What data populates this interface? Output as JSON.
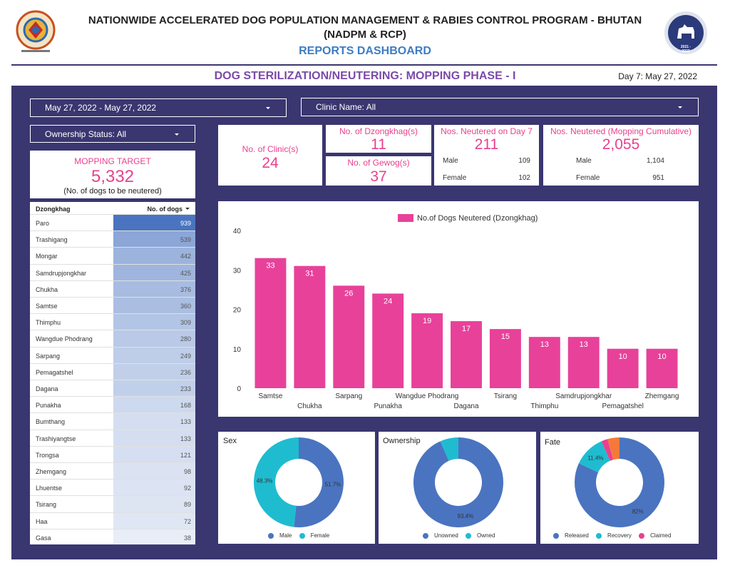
{
  "header": {
    "title_line1": "NATIONWIDE ACCELERATED DOG POPULATION MANAGEMENT & RABIES CONTROL PROGRAM - BHUTAN",
    "title_line2": "(NADPM & RCP)",
    "subtitle": "REPORTS DASHBOARD",
    "section_title": "DOG STERILIZATION/NEUTERING: MOPPING PHASE - I",
    "day_label": "Day 7: May 27, 2022",
    "left_logo_icon": "bhutan-emblem-icon",
    "right_logo_icon": "nadpm-dog-logo-icon",
    "right_logo_text": "2021 - 2022"
  },
  "filters": {
    "date_range": "May 27, 2022 - May 27, 2022",
    "clinic": "Clinic Name: All",
    "ownership": "Ownership Status: All"
  },
  "target": {
    "label": "MOPPING TARGET",
    "value": "5,332",
    "note": "(No. of dogs to be neutered)"
  },
  "kpis": {
    "clinics": {
      "label": "No. of Clinic(s)",
      "value": "24"
    },
    "dzongkhags": {
      "label": "No. of Dzongkhag(s)",
      "value": "11"
    },
    "gewogs": {
      "label": "No. of Gewog(s)",
      "value": "37"
    },
    "day7": {
      "label": "Nos. Neutered on Day 7",
      "value": "211",
      "male_label": "Male",
      "male": "109",
      "female_label": "Female",
      "female": "102"
    },
    "cumulative": {
      "label": "Nos. Neutered (Mopping Cumulative)",
      "value": "2,055",
      "male_label": "Male",
      "male": "1,104",
      "female_label": "Female",
      "female": "951"
    }
  },
  "table": {
    "col1": "Dzongkhag",
    "col2": "No. of dogs",
    "sort_icon": "sort-desc-icon",
    "rows": [
      {
        "name": "Paro",
        "value": "939"
      },
      {
        "name": "Trashigang",
        "value": "539"
      },
      {
        "name": "Mongar",
        "value": "442"
      },
      {
        "name": "Samdrupjongkhar",
        "value": "425"
      },
      {
        "name": "Chukha",
        "value": "376"
      },
      {
        "name": "Samtse",
        "value": "360"
      },
      {
        "name": "Thimphu",
        "value": "309"
      },
      {
        "name": "Wangdue Phodrang",
        "value": "280"
      },
      {
        "name": "Sarpang",
        "value": "249"
      },
      {
        "name": "Pemagatshel",
        "value": "236"
      },
      {
        "name": "Dagana",
        "value": "233"
      },
      {
        "name": "Punakha",
        "value": "168"
      },
      {
        "name": "Bumthang",
        "value": "133"
      },
      {
        "name": "Trashiyangtse",
        "value": "133"
      },
      {
        "name": "Trongsa",
        "value": "121"
      },
      {
        "name": "Zhemgang",
        "value": "98"
      },
      {
        "name": "Lhuentse",
        "value": "92"
      },
      {
        "name": "Tsirang",
        "value": "89"
      },
      {
        "name": "Haa",
        "value": "72"
      },
      {
        "name": "Gasa",
        "value": "38"
      }
    ]
  },
  "chart_data": [
    {
      "type": "bar",
      "legend": "No.of Dogs Neutered (Dzongkhag)",
      "legend_position": "top",
      "categories": [
        "Samtse",
        "Chukha",
        "Sarpang",
        "Punakha",
        "Wangdue Phodrang",
        "Dagana",
        "Tsirang",
        "Thimphu",
        "Samdrupjongkhar",
        "Pemagatshel",
        "Zhemgang"
      ],
      "values": [
        33,
        31,
        26,
        24,
        19,
        17,
        15,
        13,
        13,
        10,
        10
      ],
      "ylim": [
        0,
        40
      ],
      "yticks": [
        "0",
        "10",
        "20",
        "30",
        "40"
      ],
      "color": "#e8419a",
      "grid": false
    },
    {
      "type": "pie",
      "title": "Sex",
      "labels": [
        "Male",
        "Female"
      ],
      "values": [
        51.7,
        48.3
      ],
      "value_labels": [
        "51.7%",
        "48.3%"
      ],
      "colors": [
        "#4a74c0",
        "#1fbcd0"
      ]
    },
    {
      "type": "pie",
      "title": "Ownership",
      "labels": [
        "Unowned",
        "Owned"
      ],
      "values": [
        93.4,
        6.6
      ],
      "value_labels": [
        "93.4%",
        ""
      ],
      "colors": [
        "#4a74c0",
        "#1fbcd0"
      ]
    },
    {
      "type": "pie",
      "title": "Fate",
      "labels": [
        "Released",
        "Recovery",
        "Claimed",
        ""
      ],
      "values": [
        82,
        11.4,
        2.3,
        4.3
      ],
      "value_labels": [
        "82%",
        "11.4%",
        "",
        ""
      ],
      "colors": [
        "#4a74c0",
        "#1fbcd0",
        "#e8418e",
        "#f5793a"
      ],
      "legend_count": 3
    }
  ],
  "colors": {
    "panel": "#3a3670",
    "accent_pink": "#e8418e",
    "header_blue": "#3e7cc4",
    "section_purple": "#7b4aa8",
    "table_bar": "#4a74c0"
  }
}
